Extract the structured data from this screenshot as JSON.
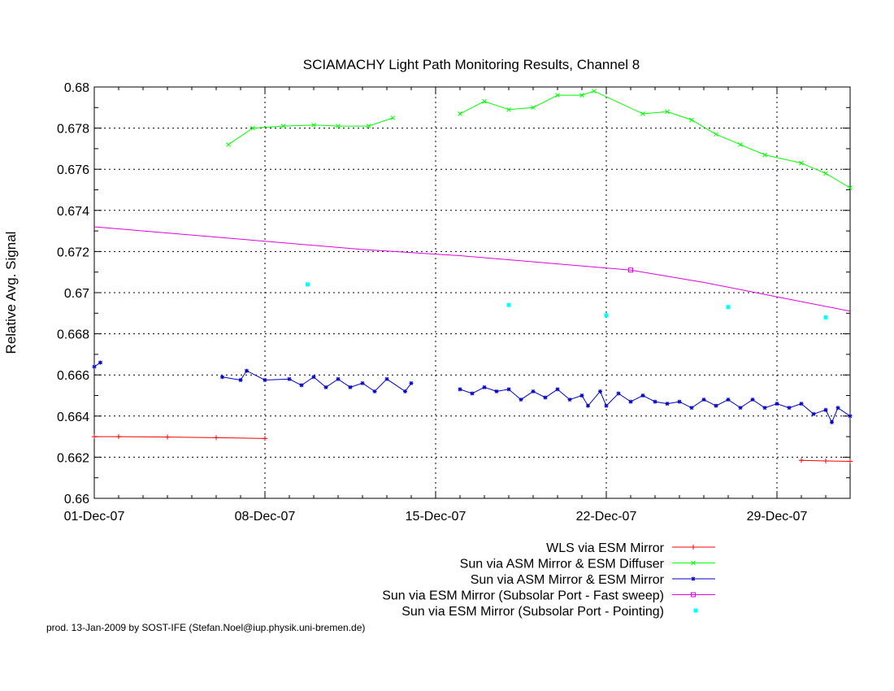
{
  "chart_data": {
    "type": "line",
    "title": "SCIAMACHY Light Path Monitoring Results, Channel 8",
    "ylabel": "Relative Avg. Signal",
    "xlabel": "",
    "xlim": [
      "2007-12-01",
      "2008-01-01"
    ],
    "ylim": [
      0.66,
      0.68
    ],
    "xticks": [
      {
        "date": "2007-12-01",
        "label": "01-Dec-07"
      },
      {
        "date": "2007-12-08",
        "label": "08-Dec-07"
      },
      {
        "date": "2007-12-15",
        "label": "15-Dec-07"
      },
      {
        "date": "2007-12-22",
        "label": "22-Dec-07"
      },
      {
        "date": "2007-12-29",
        "label": "29-Dec-07"
      }
    ],
    "yticks": [
      {
        "value": 0.66,
        "label": "0.66"
      },
      {
        "value": 0.662,
        "label": "0.662"
      },
      {
        "value": 0.664,
        "label": "0.664"
      },
      {
        "value": 0.666,
        "label": "0.666"
      },
      {
        "value": 0.668,
        "label": "0.668"
      },
      {
        "value": 0.67,
        "label": "0.67"
      },
      {
        "value": 0.672,
        "label": "0.672"
      },
      {
        "value": 0.674,
        "label": "0.674"
      },
      {
        "value": 0.676,
        "label": "0.676"
      },
      {
        "value": 0.678,
        "label": "0.678"
      },
      {
        "value": 0.68,
        "label": "0.68"
      }
    ],
    "grid": true,
    "legend_position": "bottom-right",
    "series": [
      {
        "name": "WLS via ESM Mirror",
        "color": "#ff0000",
        "marker": "plus",
        "segments": [
          [
            [
              "2007-12-01",
              0.663
            ],
            [
              "2007-12-02",
              0.663
            ],
            [
              "2007-12-04",
              0.66298
            ],
            [
              "2007-12-06",
              0.66295
            ],
            [
              "2007-12-08",
              0.66291
            ]
          ],
          [
            [
              "2007-12-30",
              0.66185
            ],
            [
              "2007-12-31",
              0.66182
            ],
            [
              "2008-01-01",
              0.6618
            ]
          ]
        ]
      },
      {
        "name": "Sun via ASM Mirror & ESM Diffuser",
        "color": "#00ff00",
        "marker": "x",
        "segments": [
          [
            [
              "2007-12-06T12:00",
              0.6772
            ],
            [
              "2007-12-07T12:00",
              0.678
            ],
            [
              "2007-12-08T18:00",
              0.6781
            ],
            [
              "2007-12-10",
              0.67815
            ],
            [
              "2007-12-11",
              0.6781
            ],
            [
              "2007-12-12T06:00",
              0.6781
            ],
            [
              "2007-12-13T06:00",
              0.6785
            ]
          ],
          [
            [
              "2007-12-16",
              0.6787
            ],
            [
              "2007-12-17",
              0.6793
            ],
            [
              "2007-12-18",
              0.6789
            ],
            [
              "2007-12-19",
              0.679
            ],
            [
              "2007-12-20",
              0.6796
            ],
            [
              "2007-12-21",
              0.6796
            ],
            [
              "2007-12-21T12:00",
              0.6798
            ],
            [
              "2007-12-23T12:00",
              0.6787
            ],
            [
              "2007-12-24T12:00",
              0.6788
            ],
            [
              "2007-12-25T12:00",
              0.6784
            ],
            [
              "2007-12-26T12:00",
              0.6777
            ],
            [
              "2007-12-27T12:00",
              0.6772
            ],
            [
              "2007-12-28T12:00",
              0.6767
            ],
            [
              "2007-12-30",
              0.6763
            ],
            [
              "2007-12-31",
              0.6758
            ],
            [
              "2008-01-01",
              0.6751
            ]
          ]
        ]
      },
      {
        "name": "Sun via ASM Mirror & ESM Mirror",
        "color": "#0000c8",
        "marker": "star",
        "segments": [
          [
            [
              "2007-12-01",
              0.6664
            ],
            [
              "2007-12-01T06:00",
              0.6666
            ]
          ],
          [
            [
              "2007-12-06T06:00",
              0.6659
            ],
            [
              "2007-12-07",
              0.66575
            ],
            [
              "2007-12-07T06:00",
              0.6662
            ],
            [
              "2007-12-08",
              0.66575
            ],
            [
              "2007-12-09",
              0.6658
            ],
            [
              "2007-12-09T12:00",
              0.6655
            ],
            [
              "2007-12-10",
              0.6659
            ],
            [
              "2007-12-10T12:00",
              0.6654
            ],
            [
              "2007-12-11",
              0.6658
            ],
            [
              "2007-12-11T12:00",
              0.6654
            ],
            [
              "2007-12-12",
              0.6656
            ],
            [
              "2007-12-12T12:00",
              0.6652
            ],
            [
              "2007-12-13",
              0.6658
            ],
            [
              "2007-12-13T18:00",
              0.6652
            ],
            [
              "2007-12-14",
              0.6656
            ]
          ],
          [
            [
              "2007-12-16",
              0.6653
            ],
            [
              "2007-12-16T12:00",
              0.6651
            ],
            [
              "2007-12-17",
              0.6654
            ],
            [
              "2007-12-17T12:00",
              0.6652
            ],
            [
              "2007-12-18",
              0.6653
            ],
            [
              "2007-12-18T12:00",
              0.6648
            ],
            [
              "2007-12-19",
              0.6652
            ],
            [
              "2007-12-19T12:00",
              0.6649
            ],
            [
              "2007-12-20",
              0.6653
            ],
            [
              "2007-12-20T12:00",
              0.6648
            ],
            [
              "2007-12-21",
              0.665
            ],
            [
              "2007-12-21T06:00",
              0.6645
            ],
            [
              "2007-12-21T18:00",
              0.6652
            ],
            [
              "2007-12-22",
              0.6645
            ],
            [
              "2007-12-22T12:00",
              0.6651
            ],
            [
              "2007-12-23",
              0.6647
            ],
            [
              "2007-12-23T12:00",
              0.665
            ],
            [
              "2007-12-24",
              0.6647
            ],
            [
              "2007-12-24T12:00",
              0.6646
            ],
            [
              "2007-12-25",
              0.6647
            ],
            [
              "2007-12-25T12:00",
              0.6644
            ],
            [
              "2007-12-26",
              0.6648
            ],
            [
              "2007-12-26T12:00",
              0.6645
            ],
            [
              "2007-12-27",
              0.6648
            ],
            [
              "2007-12-27T12:00",
              0.6644
            ],
            [
              "2007-12-28",
              0.6648
            ],
            [
              "2007-12-28T12:00",
              0.6644
            ],
            [
              "2007-12-29",
              0.6646
            ],
            [
              "2007-12-29T12:00",
              0.6644
            ],
            [
              "2007-12-30",
              0.6646
            ],
            [
              "2007-12-30T12:00",
              0.6641
            ],
            [
              "2007-12-31",
              0.6643
            ],
            [
              "2007-12-31T06:00",
              0.6637
            ],
            [
              "2007-12-31T12:00",
              0.6644
            ],
            [
              "2008-01-01",
              0.664
            ]
          ]
        ]
      },
      {
        "name": "Sun via ESM Mirror (Subsolar Port - Fast sweep)",
        "color": "#e000e0",
        "marker": "square",
        "segments": [
          [
            [
              "2007-12-01",
              0.6732
            ],
            [
              "2007-12-04",
              0.6729
            ],
            [
              "2007-12-08",
              0.6725
            ],
            [
              "2007-12-12",
              0.6721
            ],
            [
              "2007-12-16",
              0.6718
            ],
            [
              "2007-12-20",
              0.6714
            ],
            [
              "2007-12-23",
              0.6711
            ],
            [
              "2007-12-26",
              0.6705
            ],
            [
              "2007-12-29",
              0.6698
            ],
            [
              "2008-01-01",
              0.6691
            ]
          ]
        ],
        "markers": [
          [
            "2007-12-23",
            0.6711
          ]
        ]
      },
      {
        "name": "Sun via ESM Mirror (Subsolar Port - Pointing)",
        "color": "#00ffff",
        "marker": "dot",
        "points": [
          [
            "2007-12-09T18:00",
            0.6704
          ],
          [
            "2007-12-18",
            0.6694
          ],
          [
            "2007-12-22",
            0.6689
          ],
          [
            "2007-12-27",
            0.6693
          ],
          [
            "2007-12-31",
            0.6688
          ]
        ]
      }
    ]
  },
  "footer": {
    "credit": "prod. 13-Jan-2009 by SOST-IFE (Stefan.Noel@iup.physik.uni-bremen.de)"
  }
}
